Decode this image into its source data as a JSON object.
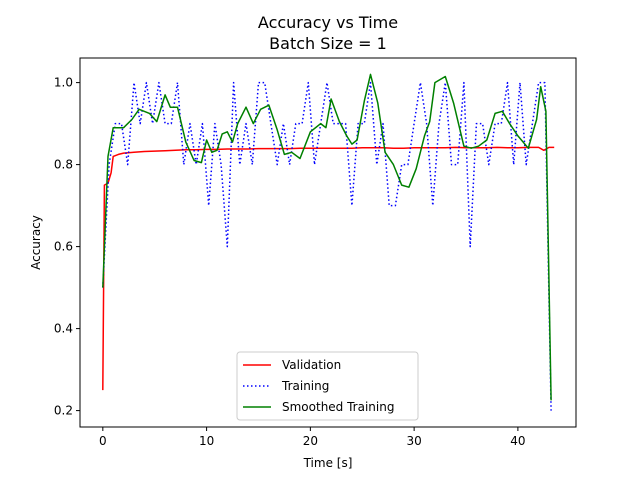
{
  "chart_data": {
    "type": "line",
    "title": "Accuracy vs Time",
    "subtitle": "Batch Size = 1",
    "xlabel": "Time [s]",
    "ylabel": "Accuracy",
    "xlim": [
      -2.2,
      45.6
    ],
    "ylim": [
      0.16,
      1.06
    ],
    "xticks": [
      0,
      10,
      20,
      30,
      40
    ],
    "yticks": [
      0.2,
      0.4,
      0.6,
      0.8,
      1.0
    ],
    "ytick_labels": [
      "0.2",
      "0.4",
      "0.6",
      "0.8",
      "1.0"
    ],
    "grid": false,
    "legend_position": "lower-center",
    "series": [
      {
        "name": "Validation",
        "color": "#ff0000",
        "style": "solid",
        "x": [
          0,
          0.15,
          0.5,
          0.8,
          1.0,
          1.5,
          2,
          3,
          4,
          5,
          6,
          7,
          8,
          9,
          10,
          11,
          12,
          13,
          14,
          15,
          16,
          17,
          18,
          19,
          20,
          21,
          22,
          23,
          24,
          25,
          26,
          27,
          28,
          29,
          30,
          31,
          32,
          33,
          34,
          35,
          36,
          37,
          38,
          39,
          40,
          41,
          42,
          42.5,
          43,
          43.5
        ],
        "values": [
          0.25,
          0.75,
          0.755,
          0.78,
          0.82,
          0.825,
          0.828,
          0.83,
          0.832,
          0.833,
          0.834,
          0.835,
          0.836,
          0.836,
          0.837,
          0.837,
          0.838,
          0.838,
          0.838,
          0.839,
          0.839,
          0.839,
          0.839,
          0.84,
          0.84,
          0.84,
          0.84,
          0.84,
          0.84,
          0.841,
          0.841,
          0.841,
          0.84,
          0.84,
          0.841,
          0.841,
          0.841,
          0.841,
          0.842,
          0.841,
          0.841,
          0.841,
          0.842,
          0.841,
          0.841,
          0.842,
          0.842,
          0.835,
          0.842,
          0.842
        ]
      },
      {
        "name": "Training",
        "color": "#0000ff",
        "style": "dotted",
        "x": [
          0,
          0.6,
          1.2,
          1.8,
          2.4,
          3.0,
          3.6,
          4.2,
          4.8,
          5.4,
          6.0,
          6.6,
          7.2,
          7.8,
          8.4,
          9.0,
          9.6,
          10.2,
          10.8,
          11.4,
          12.0,
          12.6,
          13.2,
          13.8,
          14.4,
          15.0,
          15.6,
          16.2,
          16.8,
          17.4,
          18.0,
          18.6,
          19.2,
          19.8,
          20.4,
          21.0,
          21.6,
          22.2,
          22.8,
          23.4,
          24.0,
          24.6,
          25.2,
          25.8,
          26.4,
          27.0,
          27.6,
          28.2,
          28.8,
          29.4,
          30.0,
          30.6,
          31.2,
          31.8,
          32.4,
          33.0,
          33.6,
          34.2,
          34.8,
          35.4,
          36.0,
          36.6,
          37.2,
          37.8,
          38.4,
          39.0,
          39.6,
          40.2,
          40.8,
          41.4,
          42.0,
          42.6,
          43.2
        ],
        "values": [
          0.5,
          0.8,
          0.9,
          0.9,
          0.8,
          1.0,
          0.9,
          1.0,
          0.9,
          1.0,
          0.9,
          0.9,
          1.0,
          0.8,
          0.9,
          0.8,
          0.9,
          0.7,
          0.9,
          0.8,
          0.6,
          1.0,
          0.8,
          0.9,
          0.8,
          1.0,
          1.0,
          0.9,
          0.8,
          0.9,
          0.8,
          0.9,
          0.9,
          1.0,
          0.8,
          0.9,
          1.0,
          0.9,
          0.9,
          0.9,
          0.7,
          0.9,
          0.9,
          1.0,
          0.8,
          0.9,
          0.7,
          0.7,
          0.8,
          0.8,
          0.9,
          1.0,
          0.9,
          0.7,
          0.9,
          1.0,
          0.8,
          0.8,
          1.0,
          0.6,
          0.9,
          0.9,
          0.8,
          0.9,
          0.9,
          1.0,
          0.8,
          1.0,
          0.8,
          0.9,
          1.0,
          1.0,
          0.2
        ]
      },
      {
        "name": "Smoothed Training",
        "color": "#008000",
        "style": "solid",
        "x": [
          0,
          0.5,
          1.0,
          2.0,
          2.8,
          3.5,
          4.5,
          5.2,
          6.0,
          6.5,
          7.2,
          8.0,
          8.8,
          9.5,
          10.0,
          10.5,
          11.0,
          11.5,
          12.0,
          12.5,
          13.0,
          13.8,
          14.5,
          15.2,
          16.0,
          16.8,
          17.5,
          18.2,
          19.0,
          20.0,
          21.0,
          21.5,
          22.0,
          22.8,
          23.5,
          24.0,
          24.5,
          25.2,
          25.8,
          26.5,
          27.2,
          28.0,
          28.8,
          29.5,
          30.2,
          31.0,
          31.5,
          32.0,
          33.0,
          33.8,
          34.8,
          35.5,
          36.2,
          37.0,
          37.8,
          38.5,
          39.2,
          40.0,
          41.0,
          41.8,
          42.2,
          42.7,
          43.2
        ],
        "values": [
          0.5,
          0.82,
          0.89,
          0.89,
          0.91,
          0.935,
          0.925,
          0.905,
          0.97,
          0.94,
          0.94,
          0.855,
          0.81,
          0.805,
          0.86,
          0.83,
          0.835,
          0.875,
          0.88,
          0.855,
          0.9,
          0.94,
          0.9,
          0.935,
          0.945,
          0.885,
          0.825,
          0.83,
          0.815,
          0.88,
          0.9,
          0.89,
          0.96,
          0.905,
          0.87,
          0.85,
          0.86,
          0.955,
          1.02,
          0.95,
          0.83,
          0.8,
          0.75,
          0.745,
          0.79,
          0.87,
          0.905,
          1.0,
          1.015,
          0.95,
          0.845,
          0.84,
          0.845,
          0.86,
          0.925,
          0.93,
          0.9,
          0.87,
          0.84,
          0.91,
          0.99,
          0.93,
          0.225
        ]
      }
    ]
  }
}
